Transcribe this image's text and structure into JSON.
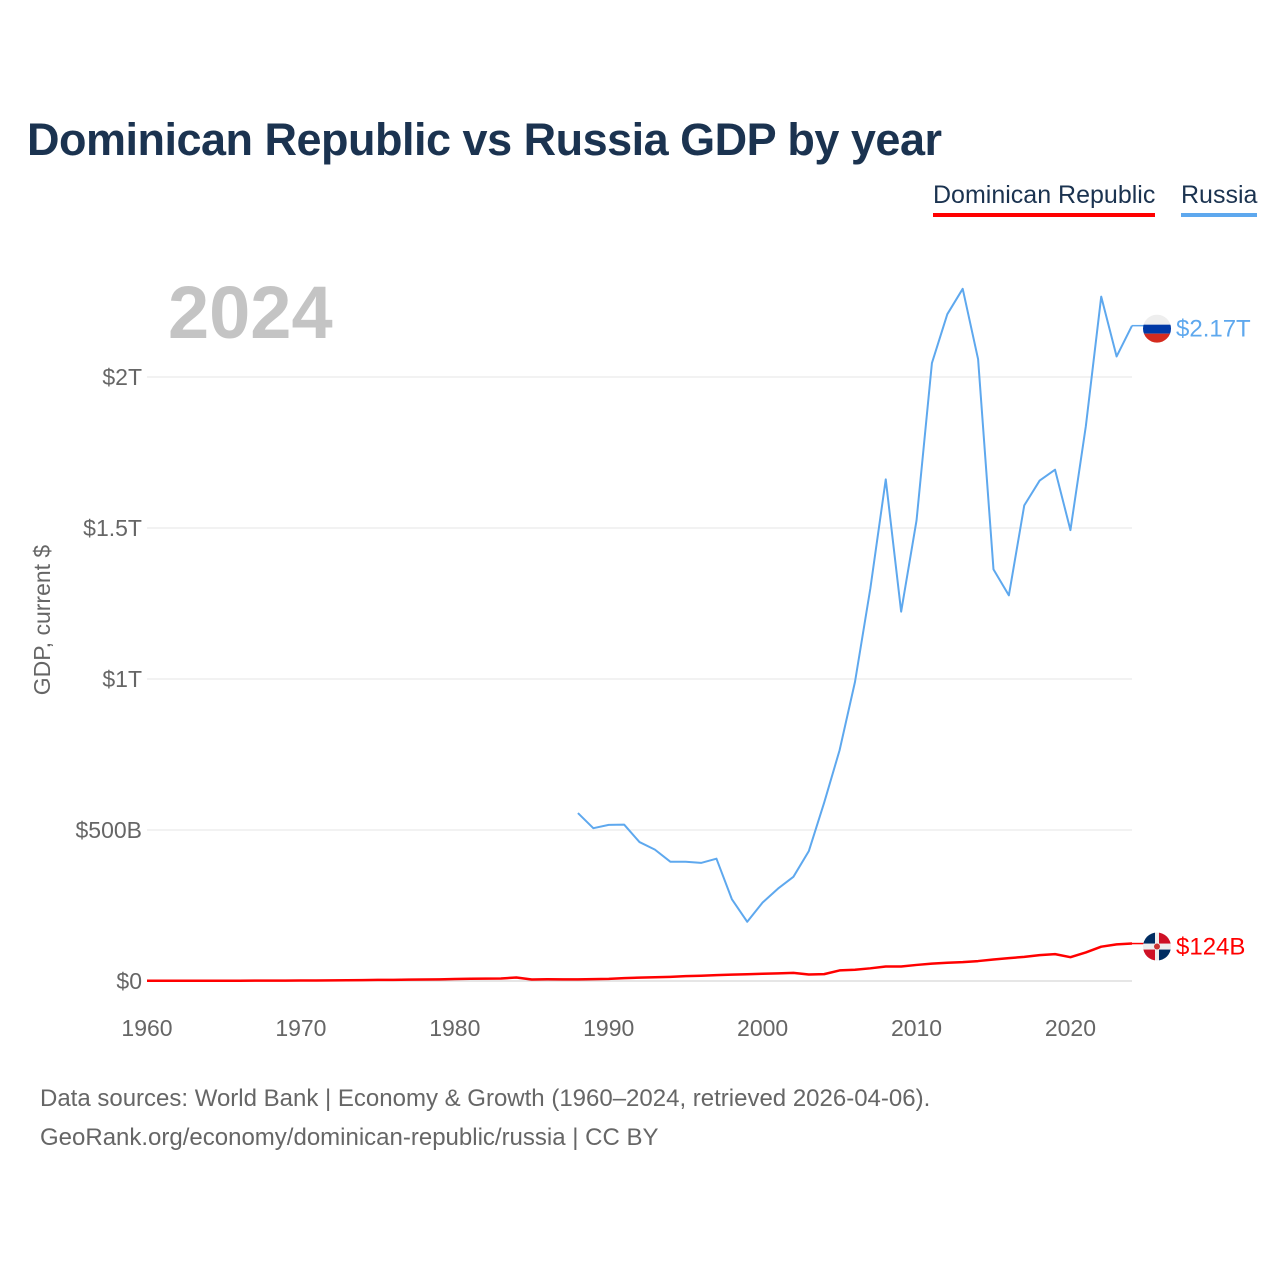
{
  "title": "Dominican Republic vs Russia GDP by year",
  "footer": {
    "line1": "Data sources: World Bank | Economy & Growth (1960–2024, retrieved 2026-04-06).",
    "line2": "GeoRank.org/economy/dominican-republic/russia | CC BY"
  },
  "chart_data": {
    "type": "line",
    "title": "Dominican Republic vs Russia GDP by year",
    "year_label": "2024",
    "ylabel": "GDP, current $",
    "xlabel": "",
    "xlim": [
      1960,
      2024
    ],
    "ylim": [
      0,
      2300000000000
    ],
    "x_ticks": [
      1960,
      1970,
      1980,
      1990,
      2000,
      2010,
      2020
    ],
    "x_tick_labels": [
      "1960",
      "1970",
      "1980",
      "1990",
      "2000",
      "2010",
      "2020"
    ],
    "y_ticks": [
      0,
      500000000000,
      1000000000000,
      1500000000000,
      2000000000000
    ],
    "y_tick_labels": [
      "$0",
      "$500B",
      "$1T",
      "$1.5T",
      "$2T"
    ],
    "grid": true,
    "legend_position": "top-right",
    "series": [
      {
        "name": "Dominican Republic",
        "color": "#ff0000",
        "flag_icon": "dominican-republic-flag-icon",
        "end_label": "$124B",
        "x": [
          1960,
          1961,
          1962,
          1963,
          1964,
          1965,
          1966,
          1967,
          1968,
          1969,
          1970,
          1971,
          1972,
          1973,
          1974,
          1975,
          1976,
          1977,
          1978,
          1979,
          1980,
          1981,
          1982,
          1983,
          1984,
          1985,
          1986,
          1987,
          1988,
          1989,
          1990,
          1991,
          1992,
          1993,
          1994,
          1995,
          1996,
          1997,
          1998,
          1999,
          2000,
          2001,
          2002,
          2003,
          2004,
          2005,
          2006,
          2007,
          2008,
          2009,
          2010,
          2011,
          2012,
          2013,
          2014,
          2015,
          2016,
          2017,
          2018,
          2019,
          2020,
          2021,
          2022,
          2023,
          2024
        ],
        "values_billions": [
          0.67,
          0.69,
          0.81,
          0.92,
          1.0,
          0.9,
          1.0,
          1.05,
          1.1,
          1.3,
          1.49,
          1.7,
          1.9,
          2.3,
          2.9,
          3.6,
          3.9,
          4.6,
          4.9,
          5.5,
          6.7,
          7.3,
          7.8,
          8.4,
          11.7,
          5.0,
          5.6,
          5.5,
          5.2,
          6.4,
          7.1,
          9.5,
          11.0,
          12.6,
          13.8,
          16.0,
          17.5,
          19.4,
          21.1,
          22.2,
          24.0,
          25.2,
          26.8,
          21.6,
          22.7,
          35.0,
          37.3,
          42.0,
          48.0,
          48.2,
          53.2,
          57.7,
          60.6,
          62.4,
          66.0,
          71.2,
          75.7,
          80.0,
          85.6,
          89.0,
          78.9,
          94.5,
          113.6,
          121.4,
          124.0
        ]
      },
      {
        "name": "Russia",
        "color": "#5ea8ee",
        "flag_icon": "russia-flag-icon",
        "end_label": "$2.17T",
        "x": [
          1988,
          1989,
          1990,
          1991,
          1992,
          1993,
          1994,
          1995,
          1996,
          1997,
          1998,
          1999,
          2000,
          2001,
          2002,
          2003,
          2004,
          2005,
          2006,
          2007,
          2008,
          2009,
          2010,
          2011,
          2012,
          2013,
          2014,
          2015,
          2016,
          2017,
          2018,
          2019,
          2020,
          2021,
          2022,
          2023,
          2024
        ],
        "values_billions": [
          556,
          506,
          517,
          518,
          460,
          435,
          395,
          395,
          391,
          405,
          271,
          196,
          260,
          306,
          345,
          430,
          591,
          764,
          990,
          1300,
          1661,
          1223,
          1525,
          2046,
          2208,
          2292,
          2059,
          1363,
          1277,
          1575,
          1657,
          1693,
          1493,
          1837,
          2266,
          2068,
          2170
        ]
      }
    ]
  }
}
